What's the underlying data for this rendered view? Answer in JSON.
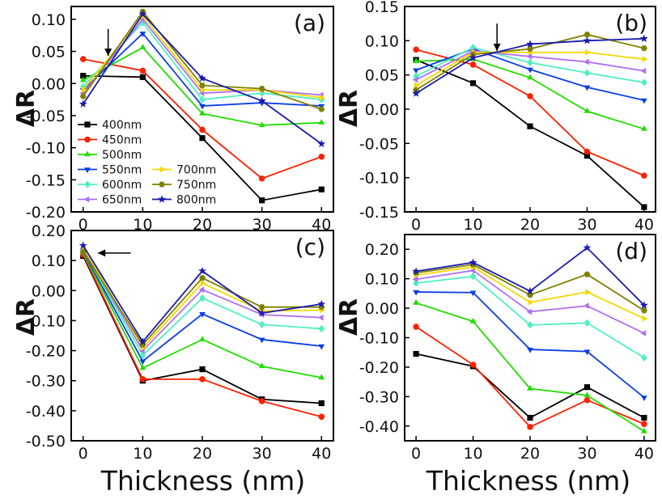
{
  "figure": {
    "x_title": "Thickness (nm)",
    "y_title": "ΔR",
    "colors": {
      "400nm": "#000000",
      "450nm": "#ff2000",
      "500nm": "#22dd00",
      "550nm": "#0b3ee6",
      "600nm": "#4ff0c0",
      "650nm": "#b070f0",
      "700nm": "#f5d800",
      "750nm": "#808000",
      "800nm": "#1a1ab0"
    },
    "markers": {
      "400nm": "square",
      "450nm": "circle",
      "500nm": "triangle-up",
      "550nm": "triangle-down",
      "600nm": "diamond",
      "650nm": "triangle-left",
      "700nm": "triangle-right",
      "750nm": "hexagon",
      "800nm": "star"
    },
    "legend": [
      {
        "name": "400nm"
      },
      {
        "name": "450nm"
      },
      {
        "name": "500nm"
      },
      {
        "name": "550nm"
      },
      {
        "name": "700nm"
      },
      {
        "name": "600nm"
      },
      {
        "name": "750nm"
      },
      {
        "name": "650nm"
      },
      {
        "name": "800nm"
      }
    ]
  },
  "chart_data": [
    {
      "type": "line",
      "panel_label": "(a)",
      "x": [
        0,
        10,
        20,
        30,
        40
      ],
      "xticks": [
        "0",
        "10",
        "20",
        "30",
        "40"
      ],
      "ylim": [
        -0.2,
        0.12
      ],
      "yticks": [
        "-0.20",
        "-0.15",
        "-0.10",
        "-0.05",
        "0.00",
        "0.05",
        "0.10"
      ],
      "ytick_values": [
        -0.2,
        -0.15,
        -0.1,
        -0.05,
        0.0,
        0.05,
        0.1
      ],
      "annotation": "arrow down at crossing near x≈4",
      "arrow": {
        "x": 4.2,
        "y_from": 0.085,
        "y_to": 0.043
      },
      "series": [
        {
          "name": "400nm",
          "values": [
            0.012,
            0.01,
            -0.085,
            -0.182,
            -0.165
          ]
        },
        {
          "name": "450nm",
          "values": [
            0.038,
            0.02,
            -0.072,
            -0.148,
            -0.114
          ]
        },
        {
          "name": "500nm",
          "values": [
            0.005,
            0.056,
            -0.047,
            -0.065,
            -0.061
          ]
        },
        {
          "name": "550nm",
          "values": [
            -0.01,
            0.078,
            -0.035,
            -0.03,
            -0.035
          ]
        },
        {
          "name": "600nm",
          "values": [
            -0.005,
            0.095,
            -0.025,
            -0.015,
            -0.025
          ]
        },
        {
          "name": "650nm",
          "values": [
            -0.015,
            0.1,
            -0.015,
            -0.01,
            -0.018
          ]
        },
        {
          "name": "700nm",
          "values": [
            -0.01,
            0.105,
            -0.01,
            -0.01,
            -0.022
          ]
        },
        {
          "name": "750nm",
          "values": [
            -0.02,
            0.112,
            -0.003,
            -0.008,
            -0.04
          ]
        },
        {
          "name": "800nm",
          "values": [
            -0.032,
            0.108,
            0.008,
            -0.027,
            -0.094
          ]
        }
      ]
    },
    {
      "type": "line",
      "panel_label": "(b)",
      "x": [
        0,
        10,
        20,
        30,
        40
      ],
      "xticks": [
        "0",
        "10",
        "20",
        "30",
        "40"
      ],
      "ylim": [
        -0.15,
        0.15
      ],
      "yticks": [
        "-0.15",
        "-0.10",
        "-0.05",
        "0.00",
        "0.05",
        "0.10",
        "0.15"
      ],
      "ytick_values": [
        -0.15,
        -0.1,
        -0.05,
        0.0,
        0.05,
        0.1,
        0.15
      ],
      "annotation": "arrow down at crossing near x≈14",
      "arrow": {
        "x": 14.2,
        "y_from": 0.125,
        "y_to": 0.085
      },
      "series": [
        {
          "name": "400nm",
          "values": [
            0.072,
            0.038,
            -0.025,
            -0.068,
            -0.143
          ]
        },
        {
          "name": "450nm",
          "values": [
            0.087,
            0.065,
            0.019,
            -0.062,
            -0.097
          ]
        },
        {
          "name": "500nm",
          "values": [
            0.07,
            0.073,
            0.046,
            -0.003,
            -0.029
          ]
        },
        {
          "name": "550nm",
          "values": [
            0.057,
            0.088,
            0.058,
            0.032,
            0.013
          ]
        },
        {
          "name": "600nm",
          "values": [
            0.048,
            0.09,
            0.068,
            0.053,
            0.039
          ]
        },
        {
          "name": "650nm",
          "values": [
            0.043,
            0.085,
            0.077,
            0.069,
            0.056
          ]
        },
        {
          "name": "700nm",
          "values": [
            0.035,
            0.083,
            0.083,
            0.083,
            0.073
          ]
        },
        {
          "name": "750nm",
          "values": [
            0.028,
            0.08,
            0.088,
            0.109,
            0.089
          ]
        },
        {
          "name": "800nm",
          "values": [
            0.023,
            0.075,
            0.095,
            0.1,
            0.103
          ]
        }
      ]
    },
    {
      "type": "line",
      "panel_label": "(c)",
      "x": [
        0,
        10,
        20,
        30,
        40
      ],
      "xticks": [
        "0",
        "10",
        "20",
        "30",
        "40"
      ],
      "ylim": [
        -0.5,
        0.2
      ],
      "yticks": [
        "-0.50",
        "-0.40",
        "-0.30",
        "-0.20",
        "-0.10",
        "0.00",
        "0.10",
        "0.20"
      ],
      "ytick_values": [
        -0.5,
        -0.4,
        -0.3,
        -0.2,
        -0.1,
        0.0,
        0.1,
        0.2
      ],
      "annotation": "arrow pointing left toward x=0 cluster",
      "arrow": {
        "x_from": 8.0,
        "x_to": 2.5,
        "y": 0.125
      },
      "series": [
        {
          "name": "400nm",
          "values": [
            0.115,
            -0.3,
            -0.262,
            -0.362,
            -0.375
          ]
        },
        {
          "name": "450nm",
          "values": [
            0.12,
            -0.295,
            -0.295,
            -0.368,
            -0.42
          ]
        },
        {
          "name": "500nm",
          "values": [
            0.125,
            -0.258,
            -0.163,
            -0.252,
            -0.29
          ]
        },
        {
          "name": "550nm",
          "values": [
            0.13,
            -0.235,
            -0.078,
            -0.163,
            -0.185
          ]
        },
        {
          "name": "600nm",
          "values": [
            0.135,
            -0.215,
            -0.025,
            -0.113,
            -0.127
          ]
        },
        {
          "name": "650nm",
          "values": [
            0.14,
            -0.2,
            0.003,
            -0.08,
            -0.09
          ]
        },
        {
          "name": "700nm",
          "values": [
            0.145,
            -0.19,
            0.025,
            -0.068,
            -0.065
          ]
        },
        {
          "name": "750nm",
          "values": [
            0.13,
            -0.18,
            0.042,
            -0.055,
            -0.055
          ]
        },
        {
          "name": "800nm",
          "values": [
            0.15,
            -0.17,
            0.065,
            -0.075,
            -0.045
          ]
        }
      ]
    },
    {
      "type": "line",
      "panel_label": "(d)",
      "x": [
        0,
        10,
        20,
        30,
        40
      ],
      "xticks": [
        "0",
        "10",
        "20",
        "30",
        "40"
      ],
      "ylim": [
        -0.45,
        0.25
      ],
      "yticks": [
        "-0.40",
        "-0.30",
        "-0.20",
        "-0.10",
        "0.00",
        "0.10",
        "0.20"
      ],
      "ytick_values": [
        -0.4,
        -0.3,
        -0.2,
        -0.1,
        0.0,
        0.1,
        0.2
      ],
      "series": [
        {
          "name": "400nm",
          "values": [
            -0.155,
            -0.197,
            -0.372,
            -0.268,
            -0.372
          ]
        },
        {
          "name": "450nm",
          "values": [
            -0.063,
            -0.192,
            -0.403,
            -0.312,
            -0.393
          ]
        },
        {
          "name": "500nm",
          "values": [
            0.018,
            -0.045,
            -0.273,
            -0.296,
            -0.418
          ]
        },
        {
          "name": "550nm",
          "values": [
            0.055,
            0.053,
            -0.14,
            -0.147,
            -0.303
          ]
        },
        {
          "name": "600nm",
          "values": [
            0.085,
            0.108,
            -0.057,
            -0.05,
            -0.168
          ]
        },
        {
          "name": "650nm",
          "values": [
            0.098,
            0.128,
            -0.012,
            0.008,
            -0.085
          ]
        },
        {
          "name": "700nm",
          "values": [
            0.112,
            0.14,
            0.02,
            0.055,
            -0.035
          ]
        },
        {
          "name": "750nm",
          "values": [
            0.12,
            0.148,
            0.045,
            0.115,
            -0.008
          ]
        },
        {
          "name": "800nm",
          "values": [
            0.125,
            0.155,
            0.058,
            0.205,
            0.01
          ]
        }
      ]
    }
  ]
}
